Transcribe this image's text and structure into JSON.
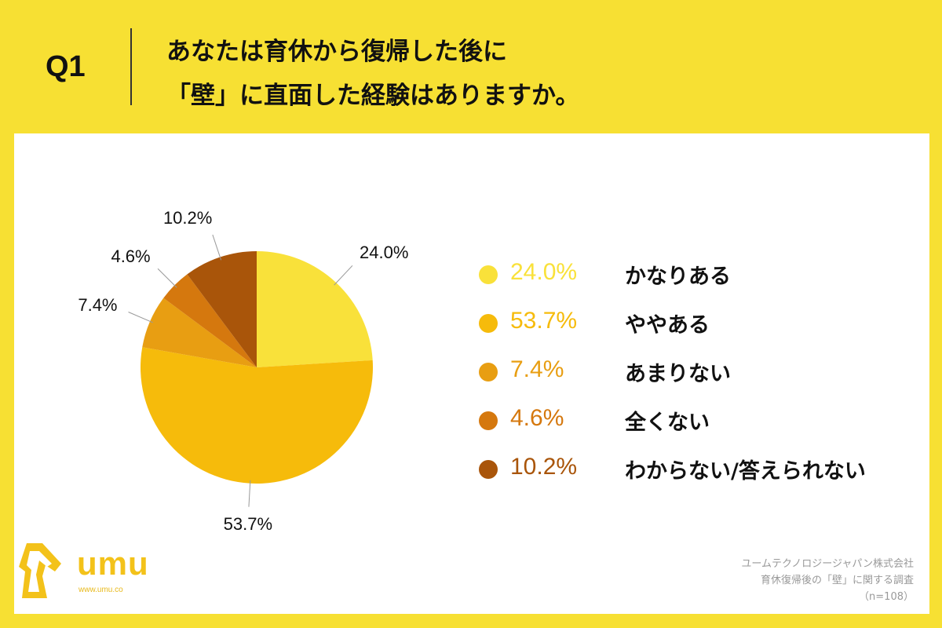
{
  "header": {
    "question_label": "Q1",
    "title_line1": "あなたは育休から復帰した後に",
    "title_line2": "「壁」に直面した経験はありますか。"
  },
  "chart_data": {
    "type": "pie",
    "categories": [
      "かなりある",
      "ややある",
      "あまりない",
      "全くない",
      "わからない/答えられない"
    ],
    "values": [
      24.0,
      53.7,
      7.4,
      4.6,
      10.2
    ],
    "labels": [
      "24.0%",
      "53.7%",
      "7.4%",
      "4.6%",
      "10.2%"
    ],
    "colors": [
      "#F9E13A",
      "#F6BB0B",
      "#E89E12",
      "#D5780E",
      "#A9550A"
    ],
    "legend_placement": "right"
  },
  "footer": {
    "logo_text": "umu",
    "logo_url": "www.umu.co",
    "credit_line1": "ユームテクノロジージャパン株式会社",
    "credit_line2": "育休復帰後の「壁」に関する調査",
    "credit_line3": "（n=108）"
  }
}
